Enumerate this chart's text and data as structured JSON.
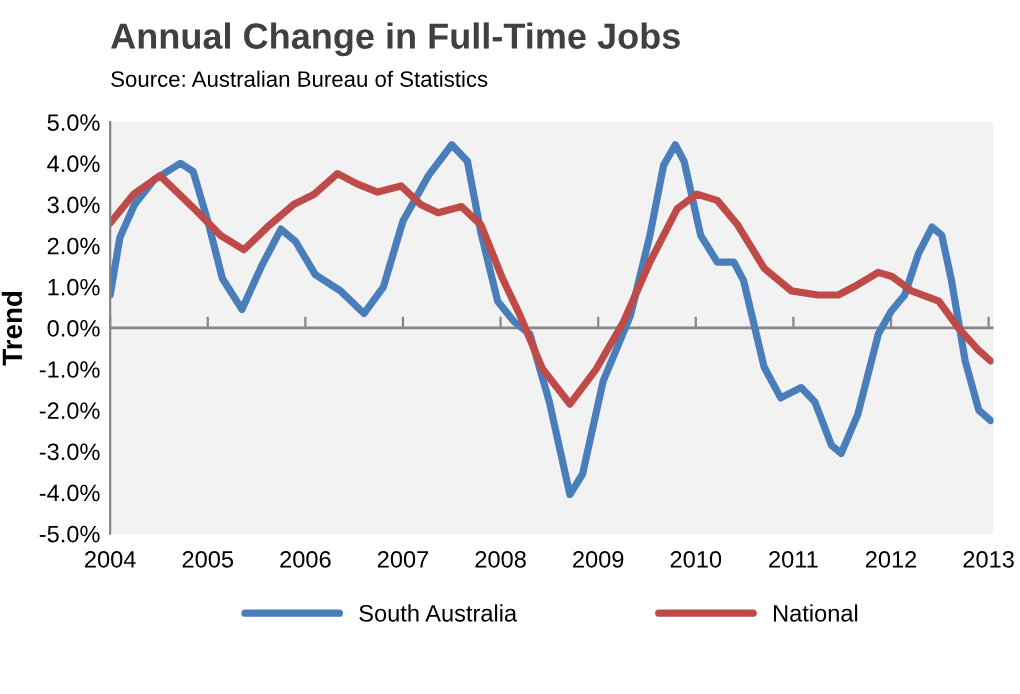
{
  "chart_data": {
    "type": "line",
    "title": "Annual Change in Full-Time Jobs",
    "ylabel": "Trend",
    "annotations": [
      "Source: Australian Bureau of Statistics"
    ],
    "series": [
      {
        "name": "South Australia",
        "color": "#4a7ebb",
        "x": [
          2004.0,
          2004.1,
          2004.25,
          2004.45,
          2004.72,
          2004.85,
          2005.0,
          2005.15,
          2005.35,
          2005.55,
          2005.75,
          2005.9,
          2006.1,
          2006.36,
          2006.6,
          2006.8,
          2007.0,
          2007.26,
          2007.5,
          2007.66,
          2007.8,
          2007.97,
          2008.14,
          2008.3,
          2008.5,
          2008.71,
          2008.84,
          2009.05,
          2009.33,
          2009.53,
          2009.67,
          2009.79,
          2009.88,
          2010.05,
          2010.22,
          2010.39,
          2010.49,
          2010.7,
          2010.87,
          2011.08,
          2011.22,
          2011.39,
          2011.49,
          2011.66,
          2011.87,
          2012.0,
          2012.14,
          2012.28,
          2012.42,
          2012.52,
          2012.62,
          2012.76,
          2012.9,
          2013.02
        ],
        "values": [
          0.8,
          2.2,
          3.0,
          3.6,
          4.0,
          3.8,
          2.6,
          1.2,
          0.45,
          1.5,
          2.4,
          2.1,
          1.3,
          0.9,
          0.35,
          1.0,
          2.6,
          3.7,
          4.45,
          4.05,
          2.3,
          0.65,
          0.15,
          -0.15,
          -1.8,
          -4.05,
          -3.55,
          -1.3,
          0.3,
          2.25,
          3.95,
          4.45,
          4.05,
          2.25,
          1.6,
          1.6,
          1.15,
          -0.95,
          -1.7,
          -1.45,
          -1.8,
          -2.85,
          -3.05,
          -2.1,
          -0.15,
          0.4,
          0.8,
          1.8,
          2.45,
          2.25,
          1.15,
          -0.8,
          -2.0,
          -2.25
        ]
      },
      {
        "name": "National",
        "color": "#be4b48",
        "x": [
          2004.0,
          2004.24,
          2004.51,
          2004.86,
          2005.13,
          2005.37,
          2005.61,
          2005.88,
          2006.09,
          2006.33,
          2006.53,
          2006.74,
          2006.98,
          2007.18,
          2007.36,
          2007.6,
          2007.8,
          2008.02,
          2008.2,
          2008.43,
          2008.71,
          2008.98,
          2009.26,
          2009.53,
          2009.81,
          2010.01,
          2010.22,
          2010.43,
          2010.7,
          2010.98,
          2011.25,
          2011.46,
          2011.66,
          2011.87,
          2012.01,
          2012.21,
          2012.49,
          2012.69,
          2012.9,
          2013.02
        ],
        "values": [
          2.55,
          3.25,
          3.7,
          2.9,
          2.25,
          1.9,
          2.45,
          3.0,
          3.25,
          3.75,
          3.5,
          3.3,
          3.45,
          3.0,
          2.8,
          2.95,
          2.5,
          1.2,
          0.3,
          -1.0,
          -1.85,
          -1.0,
          0.15,
          1.6,
          2.9,
          3.25,
          3.1,
          2.5,
          1.45,
          0.9,
          0.8,
          0.8,
          1.05,
          1.35,
          1.25,
          0.9,
          0.65,
          0.0,
          -0.55,
          -0.8
        ]
      }
    ],
    "xlim": [
      2004,
      2013.05
    ],
    "xticks": [
      2004,
      2005,
      2006,
      2007,
      2008,
      2009,
      2010,
      2011,
      2012,
      2013
    ],
    "ylim": [
      -5,
      5
    ],
    "yticks": [
      {
        "value": -5,
        "label": "-5.0%"
      },
      {
        "value": -4,
        "label": "-4.0%"
      },
      {
        "value": -3,
        "label": "-3.0%"
      },
      {
        "value": -2,
        "label": "-2.0%"
      },
      {
        "value": -1,
        "label": "-1.0%"
      },
      {
        "value": 0,
        "label": "0.0%"
      },
      {
        "value": 1,
        "label": "1.0%"
      },
      {
        "value": 2,
        "label": "2.0%"
      },
      {
        "value": 3,
        "label": "3.0%"
      },
      {
        "value": 4,
        "label": "4.0%"
      },
      {
        "value": 5,
        "label": "5.0%"
      }
    ],
    "ref_lines": [
      {
        "axis": "y",
        "value": 0,
        "color": "#868686"
      }
    ],
    "legend": "bottom",
    "grid": false,
    "marker": "none",
    "line_style": "solid"
  }
}
